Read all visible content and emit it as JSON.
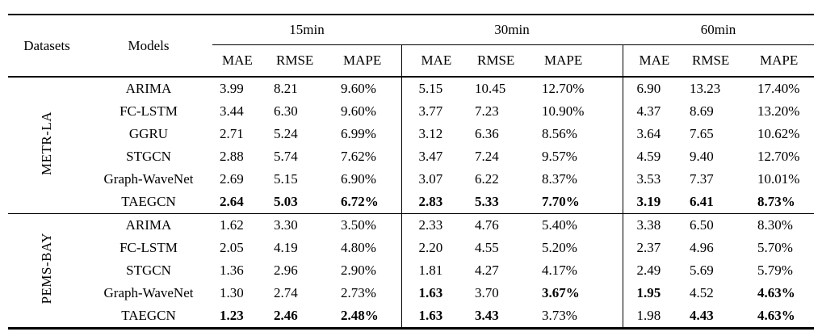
{
  "table": {
    "datasets_header": "Datasets",
    "models_header": "Models",
    "horizons": [
      "15min",
      "30min",
      "60min"
    ],
    "metrics": [
      "MAE",
      "RMSE",
      "MAPE"
    ],
    "groups": [
      {
        "dataset": "METR-LA",
        "rows": [
          {
            "model": "ARIMA",
            "values": [
              "3.99",
              "8.21",
              "9.60%",
              "5.15",
              "10.45",
              "12.70%",
              "6.90",
              "13.23",
              "17.40%"
            ],
            "bold": [
              0,
              0,
              0,
              0,
              0,
              0,
              0,
              0,
              0
            ]
          },
          {
            "model": "FC-LSTM",
            "values": [
              "3.44",
              "6.30",
              "9.60%",
              "3.77",
              "7.23",
              "10.90%",
              "4.37",
              "8.69",
              "13.20%"
            ],
            "bold": [
              0,
              0,
              0,
              0,
              0,
              0,
              0,
              0,
              0
            ]
          },
          {
            "model": "GGRU",
            "values": [
              "2.71",
              "5.24",
              "6.99%",
              "3.12",
              "6.36",
              "8.56%",
              "3.64",
              "7.65",
              "10.62%"
            ],
            "bold": [
              0,
              0,
              0,
              0,
              0,
              0,
              0,
              0,
              0
            ]
          },
          {
            "model": "STGCN",
            "values": [
              "2.88",
              "5.74",
              "7.62%",
              "3.47",
              "7.24",
              "9.57%",
              "4.59",
              "9.40",
              "12.70%"
            ],
            "bold": [
              0,
              0,
              0,
              0,
              0,
              0,
              0,
              0,
              0
            ]
          },
          {
            "model": "Graph-WaveNet",
            "values": [
              "2.69",
              "5.15",
              "6.90%",
              "3.07",
              "6.22",
              "8.37%",
              "3.53",
              "7.37",
              "10.01%"
            ],
            "bold": [
              0,
              0,
              0,
              0,
              0,
              0,
              0,
              0,
              0
            ]
          },
          {
            "model": "TAEGCN",
            "values": [
              "2.64",
              "5.03",
              "6.72%",
              "2.83",
              "5.33",
              "7.70%",
              "3.19",
              "6.41",
              "8.73%"
            ],
            "bold": [
              1,
              1,
              1,
              1,
              1,
              1,
              1,
              1,
              1
            ]
          }
        ]
      },
      {
        "dataset": "PEMS-BAY",
        "rows": [
          {
            "model": "ARIMA",
            "values": [
              "1.62",
              "3.30",
              "3.50%",
              "2.33",
              "4.76",
              "5.40%",
              "3.38",
              "6.50",
              "8.30%"
            ],
            "bold": [
              0,
              0,
              0,
              0,
              0,
              0,
              0,
              0,
              0
            ]
          },
          {
            "model": "FC-LSTM",
            "values": [
              "2.05",
              "4.19",
              "4.80%",
              "2.20",
              "4.55",
              "5.20%",
              "2.37",
              "4.96",
              "5.70%"
            ],
            "bold": [
              0,
              0,
              0,
              0,
              0,
              0,
              0,
              0,
              0
            ]
          },
          {
            "model": "STGCN",
            "values": [
              "1.36",
              "2.96",
              "2.90%",
              "1.81",
              "4.27",
              "4.17%",
              "2.49",
              "5.69",
              "5.79%"
            ],
            "bold": [
              0,
              0,
              0,
              0,
              0,
              0,
              0,
              0,
              0
            ]
          },
          {
            "model": "Graph-WaveNet",
            "values": [
              "1.30",
              "2.74",
              "2.73%",
              "1.63",
              "3.70",
              "3.67%",
              "1.95",
              "4.52",
              "4.63%"
            ],
            "bold": [
              0,
              0,
              0,
              1,
              0,
              1,
              1,
              0,
              1
            ]
          },
          {
            "model": "TAEGCN",
            "values": [
              "1.23",
              "2.46",
              "2.48%",
              "1.63",
              "3.43",
              "3.73%",
              "1.98",
              "4.43",
              "4.63%"
            ],
            "bold": [
              1,
              1,
              1,
              1,
              1,
              0,
              0,
              1,
              1
            ]
          }
        ]
      }
    ]
  }
}
